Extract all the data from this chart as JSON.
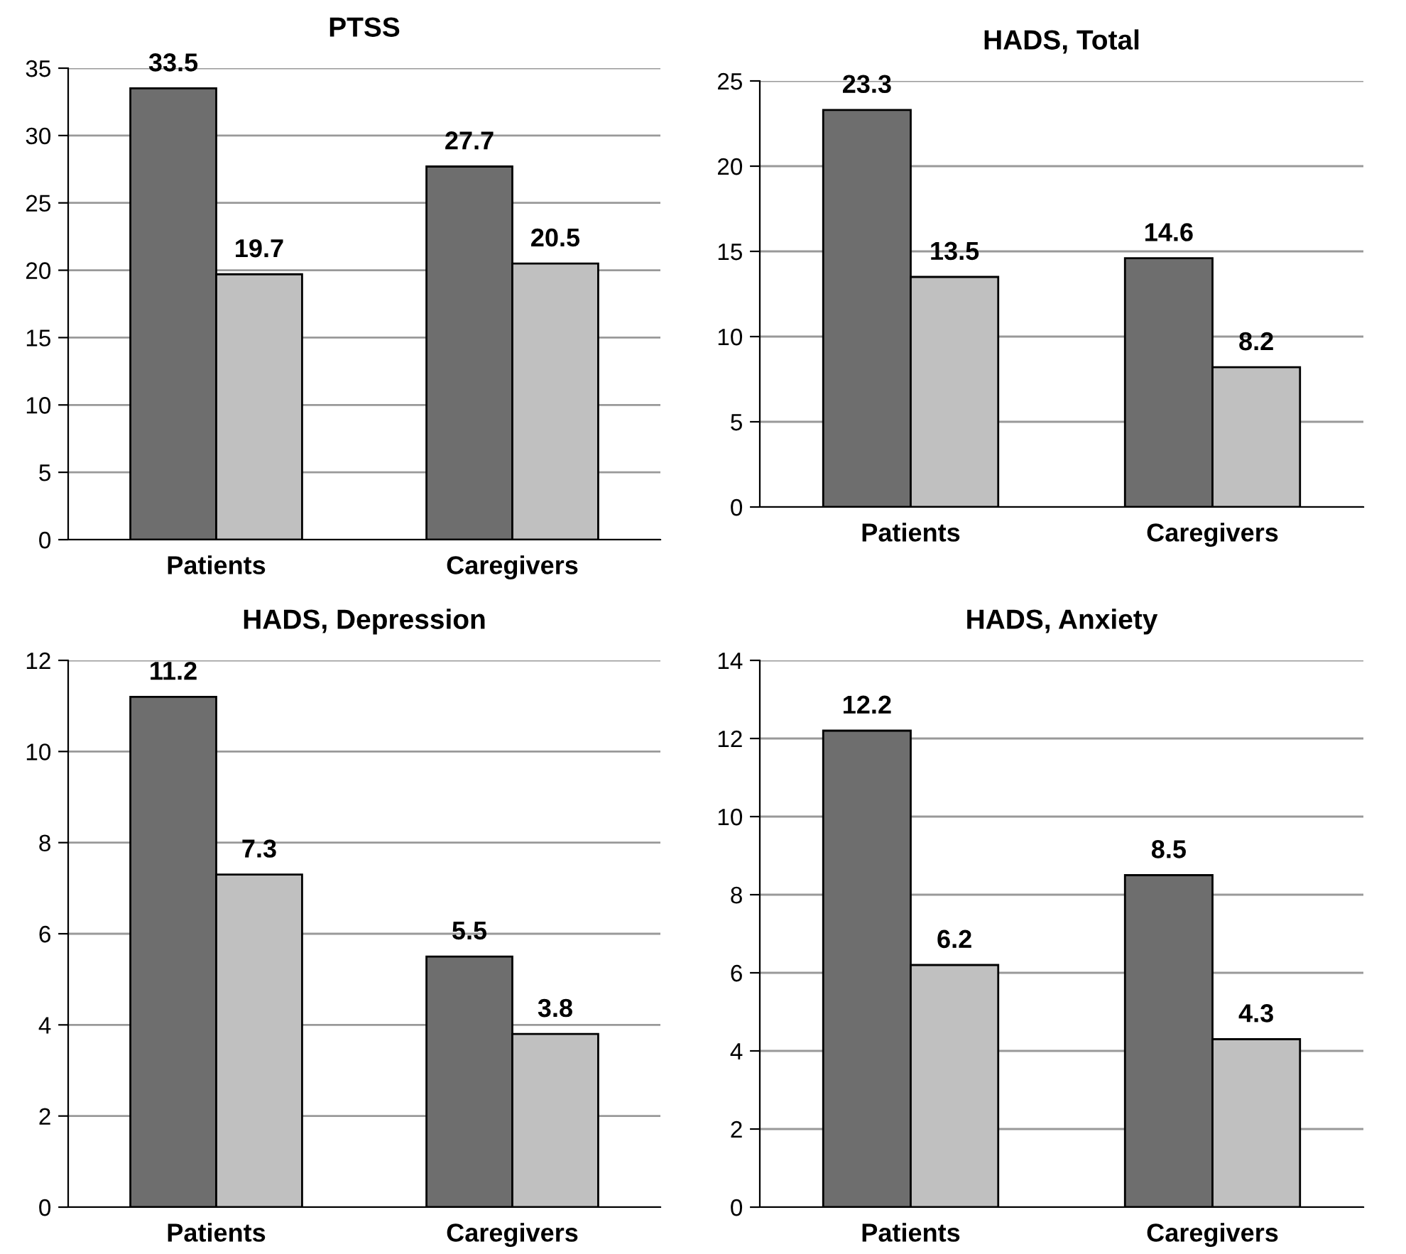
{
  "chart_data": [
    {
      "type": "bar",
      "title": "PTSS",
      "categories": [
        "Patients",
        "Caregivers"
      ],
      "series": [
        {
          "color": "#6e6e6e",
          "values": [
            33.5,
            27.7
          ]
        },
        {
          "color": "#c0c0c0",
          "values": [
            19.7,
            20.5
          ]
        }
      ],
      "ylim": [
        0,
        35
      ],
      "yticks": [
        0,
        5,
        10,
        15,
        20,
        25,
        30,
        35
      ],
      "grid": "y",
      "data_labels": true
    },
    {
      "type": "bar",
      "title": "HADS, Total",
      "categories": [
        "Patients",
        "Caregivers"
      ],
      "series": [
        {
          "color": "#6e6e6e",
          "values": [
            23.3,
            14.6
          ]
        },
        {
          "color": "#c0c0c0",
          "values": [
            13.5,
            8.2
          ]
        }
      ],
      "ylim": [
        0,
        25
      ],
      "yticks": [
        0,
        5,
        10,
        15,
        20,
        25
      ],
      "grid": "y",
      "data_labels": true
    },
    {
      "type": "bar",
      "title": "HADS, Depression",
      "categories": [
        "Patients",
        "Caregivers"
      ],
      "series": [
        {
          "color": "#6e6e6e",
          "values": [
            11.2,
            5.5
          ]
        },
        {
          "color": "#c0c0c0",
          "values": [
            7.3,
            3.8
          ]
        }
      ],
      "ylim": [
        0,
        12
      ],
      "yticks": [
        0,
        2,
        4,
        6,
        8,
        10,
        12
      ],
      "grid": "y",
      "data_labels": true
    },
    {
      "type": "bar",
      "title": "HADS, Anxiety",
      "categories": [
        "Patients",
        "Caregivers"
      ],
      "series": [
        {
          "color": "#6e6e6e",
          "values": [
            12.2,
            8.5
          ]
        },
        {
          "color": "#c0c0c0",
          "values": [
            6.2,
            4.3
          ]
        }
      ],
      "ylim": [
        0,
        14
      ],
      "yticks": [
        0,
        2,
        4,
        6,
        8,
        10,
        12,
        14
      ],
      "grid": "y",
      "data_labels": true
    }
  ]
}
